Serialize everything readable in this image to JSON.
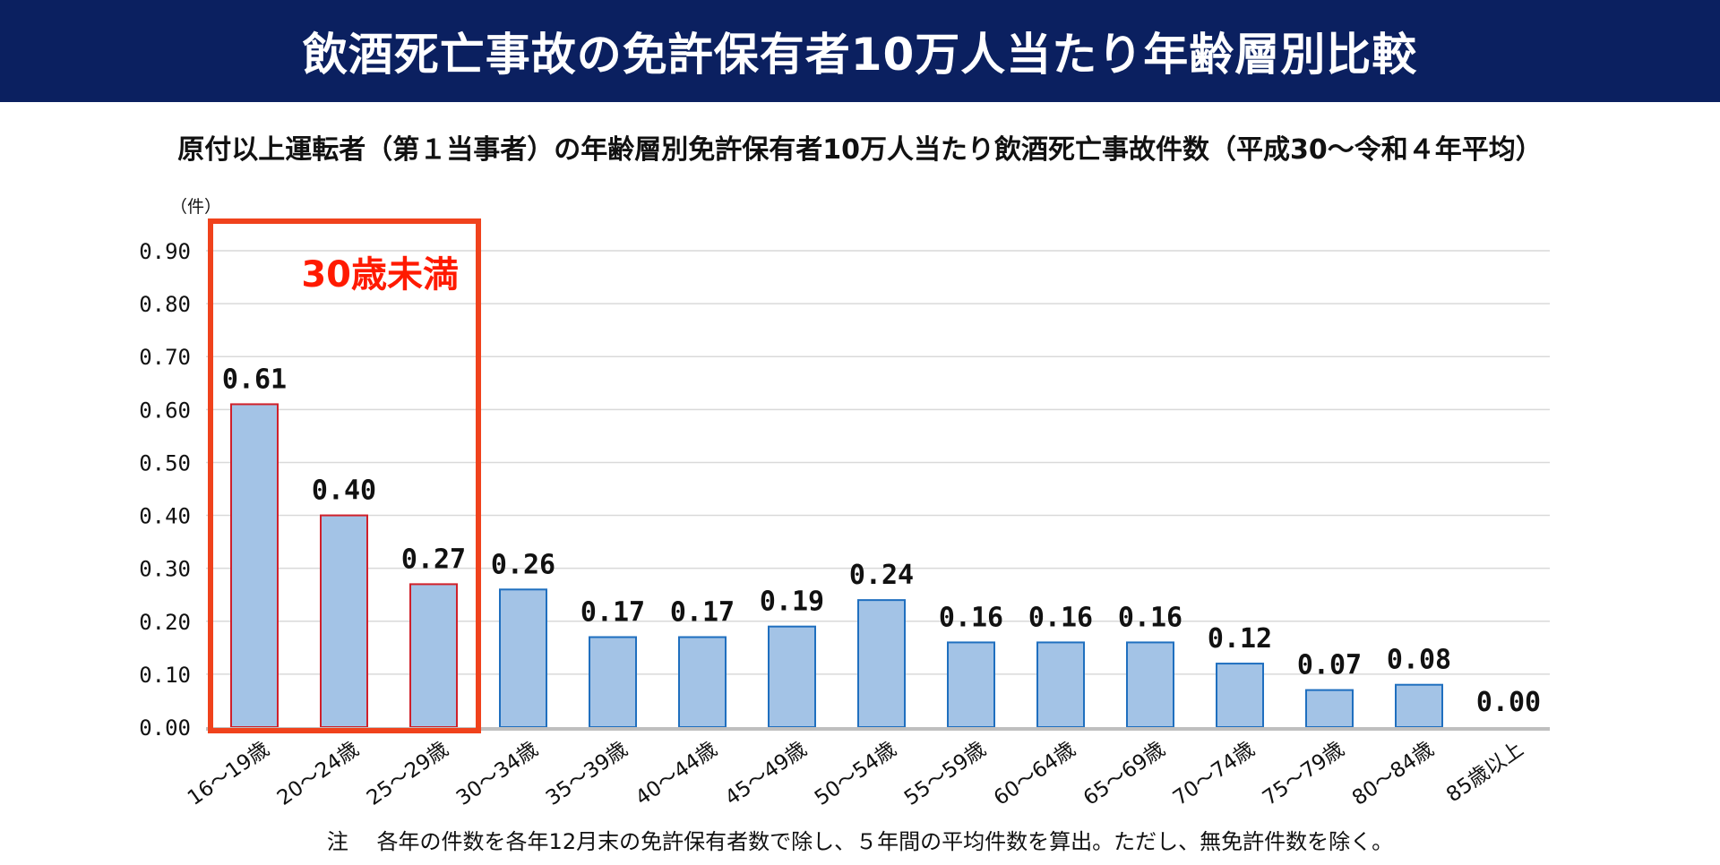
{
  "header": {
    "title": "飲酒死亡事故の免許保有者10万人当たり年齢層別比較"
  },
  "subtitle": "原付以上運転者（第１当事者）の年齢層別免許保有者10万人当たり飲酒死亡事故件数（平成30～令和４年平均）",
  "footnote": {
    "label": "注",
    "text": "各年の件数を各年12月末の免許保有者数で除し、５年間の平均件数を算出。ただし、無免許件数を除く。"
  },
  "highlight": {
    "label": "30歳未満",
    "color": "#f0421c",
    "label_color": "#ff1a00"
  },
  "colors": {
    "bar_fill": "#a3c3e6",
    "bar_stroke": "#1f6fbf",
    "bar_stroke_highlight": "#d0202a",
    "grid": "#d9d9d9",
    "axis": "#bfbfbf"
  },
  "chart_data": {
    "type": "bar",
    "ylabel": "（件）",
    "xlabel": "",
    "ylim": [
      0,
      0.9
    ],
    "yticks": [
      "0.00",
      "0.10",
      "0.20",
      "0.30",
      "0.40",
      "0.50",
      "0.60",
      "0.70",
      "0.80",
      "0.90"
    ],
    "grid": true,
    "categories": [
      "16～19歳",
      "20～24歳",
      "25～29歳",
      "30～34歳",
      "35～39歳",
      "40～44歳",
      "45～49歳",
      "50～54歳",
      "55～59歳",
      "60～64歳",
      "65～69歳",
      "70～74歳",
      "75～79歳",
      "80～84歳",
      "85歳以上"
    ],
    "values": [
      0.61,
      0.4,
      0.27,
      0.26,
      0.17,
      0.17,
      0.19,
      0.24,
      0.16,
      0.16,
      0.16,
      0.12,
      0.07,
      0.08,
      0.0
    ],
    "value_labels": [
      "0.61",
      "0.40",
      "0.27",
      "0.26",
      "0.17",
      "0.17",
      "0.19",
      "0.24",
      "0.16",
      "0.16",
      "0.16",
      "0.12",
      "0.07",
      "0.08",
      "0.00"
    ],
    "highlighted_categories": [
      "16～19歳",
      "20～24歳",
      "25～29歳"
    ]
  }
}
